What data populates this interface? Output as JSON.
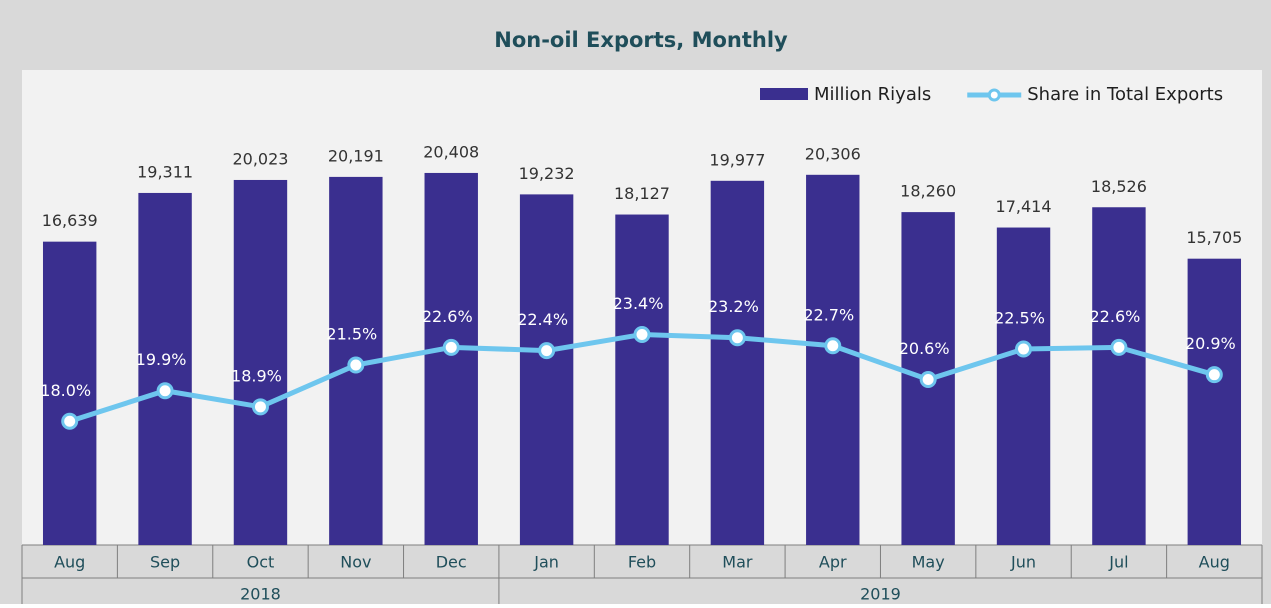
{
  "chart_data": {
    "type": "bar-line",
    "title": "Non-oil Exports, Monthly",
    "categories": [
      "Aug",
      "Sep",
      "Oct",
      "Nov",
      "Dec",
      "Jan",
      "Feb",
      "Mar",
      "Apr",
      "May",
      "Jun",
      "Jul",
      "Aug"
    ],
    "years": [
      "2018",
      "2019"
    ],
    "series": [
      {
        "name": "Million Riyals",
        "type": "bar",
        "color": "#3a2f8f",
        "values": [
          16639,
          19311,
          20023,
          20191,
          20408,
          19232,
          18127,
          19977,
          20306,
          18260,
          17414,
          18526,
          15705
        ],
        "value_labels": [
          "16,639",
          "19,311",
          "20,023",
          "20,191",
          "20,408",
          "19,232",
          "18,127",
          "19,977",
          "20,306",
          "18,260",
          "17,414",
          "18,526",
          "15,705"
        ]
      },
      {
        "name": "Share in Total Exports",
        "type": "line",
        "axis": "y2",
        "color": "#6ec6ee",
        "values": [
          18.0,
          19.9,
          18.9,
          21.5,
          22.6,
          22.4,
          23.4,
          23.2,
          22.7,
          20.6,
          22.5,
          22.6,
          20.9
        ],
        "value_labels": [
          "18.0%",
          "19.9%",
          "18.9%",
          "21.5%",
          "22.6%",
          "22.4%",
          "23.4%",
          "23.2%",
          "22.7%",
          "20.6%",
          "22.5%",
          "22.6%",
          "20.9%"
        ]
      }
    ],
    "ylim": [
      0,
      26000
    ],
    "y2lim": [
      10.3,
      39.8
    ],
    "legend": "top-right"
  }
}
